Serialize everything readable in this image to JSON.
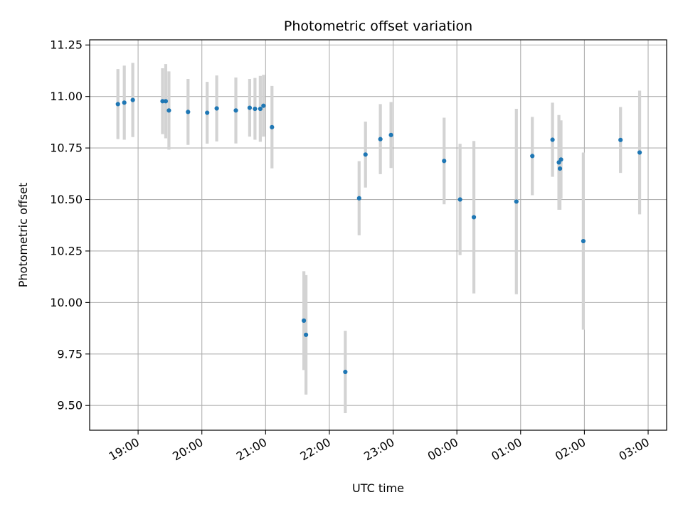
{
  "chart_data": {
    "type": "scatter",
    "title": "Photometric offset variation",
    "xlabel": "UTC time",
    "ylabel": "Photometric offset",
    "x_axis_type": "time",
    "x_ticks": [
      "19:00",
      "20:00",
      "21:00",
      "22:00",
      "23:00",
      "00:00",
      "01:00",
      "02:00",
      "03:00"
    ],
    "x_tick_positions_hours": [
      19,
      20,
      21,
      22,
      23,
      24,
      25,
      26,
      27
    ],
    "xlim_hours": [
      18.24,
      27.29
    ],
    "y_ticks": [
      9.5,
      9.75,
      10.0,
      10.25,
      10.5,
      10.75,
      11.0,
      11.25
    ],
    "y_tick_labels": [
      "9.50",
      "9.75",
      "10.00",
      "10.25",
      "10.50",
      "10.75",
      "11.00",
      "11.25"
    ],
    "ylim": [
      9.38,
      11.275
    ],
    "grid": true,
    "x_tick_rotation": "slanted",
    "colors": {
      "marker": "#1f77b4",
      "errorbar": "#d3d3d3",
      "grid": "#b0b0b0"
    },
    "points": [
      {
        "t": "18:41",
        "y": 10.963,
        "err": 0.17
      },
      {
        "t": "18:47",
        "y": 10.97,
        "err": 0.18
      },
      {
        "t": "18:55",
        "y": 10.983,
        "err": 0.18
      },
      {
        "t": "19:23",
        "y": 10.977,
        "err": 0.16
      },
      {
        "t": "19:26",
        "y": 10.977,
        "err": 0.18
      },
      {
        "t": "19:29",
        "y": 10.932,
        "err": 0.19
      },
      {
        "t": "19:47",
        "y": 10.925,
        "err": 0.16
      },
      {
        "t": "20:05",
        "y": 10.921,
        "err": 0.15
      },
      {
        "t": "20:14",
        "y": 10.942,
        "err": 0.16
      },
      {
        "t": "20:32",
        "y": 10.932,
        "err": 0.16
      },
      {
        "t": "20:45",
        "y": 10.945,
        "err": 0.14
      },
      {
        "t": "20:50",
        "y": 10.94,
        "err": 0.15
      },
      {
        "t": "20:55",
        "y": 10.94,
        "err": 0.16
      },
      {
        "t": "20:58",
        "y": 10.955,
        "err": 0.15
      },
      {
        "t": "21:06",
        "y": 10.851,
        "err": 0.2
      },
      {
        "t": "21:36",
        "y": 9.912,
        "err": 0.24
      },
      {
        "t": "21:38",
        "y": 9.843,
        "err": 0.29
      },
      {
        "t": "22:15",
        "y": 9.663,
        "err": 0.2
      },
      {
        "t": "22:28",
        "y": 10.506,
        "err": 0.18
      },
      {
        "t": "22:34",
        "y": 10.718,
        "err": 0.16
      },
      {
        "t": "22:48",
        "y": 10.793,
        "err": 0.17
      },
      {
        "t": "22:58",
        "y": 10.813,
        "err": 0.16
      },
      {
        "t": "23:48",
        "y": 10.687,
        "err": 0.21
      },
      {
        "t": "00:03",
        "y": 10.5,
        "err": 0.27
      },
      {
        "t": "00:16",
        "y": 10.414,
        "err": 0.37
      },
      {
        "t": "00:56",
        "y": 10.49,
        "err": 0.45
      },
      {
        "t": "01:11",
        "y": 10.711,
        "err": 0.19
      },
      {
        "t": "01:30",
        "y": 10.79,
        "err": 0.18
      },
      {
        "t": "01:36",
        "y": 10.68,
        "err": 0.23
      },
      {
        "t": "01:37",
        "y": 10.65,
        "err": 0.2
      },
      {
        "t": "01:38",
        "y": 10.694,
        "err": 0.19
      },
      {
        "t": "01:59",
        "y": 10.298,
        "err": 0.43
      },
      {
        "t": "02:34",
        "y": 10.789,
        "err": 0.16
      },
      {
        "t": "02:52",
        "y": 10.728,
        "err": 0.3
      }
    ]
  }
}
